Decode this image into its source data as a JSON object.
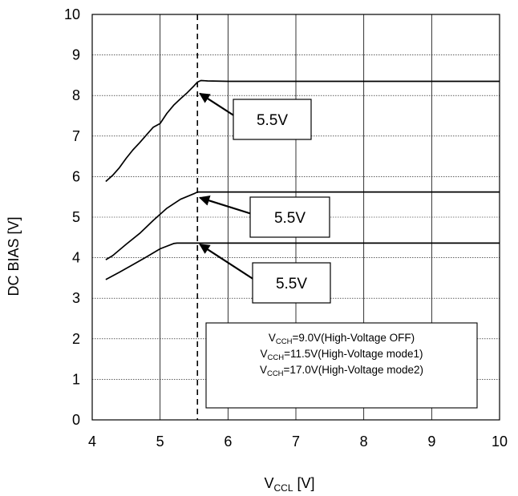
{
  "chart_data": {
    "type": "line",
    "title": "",
    "xlabel": {
      "main": "V",
      "sub": "CCL",
      "unit": " [V]"
    },
    "ylabel": "DC BIAS [V]",
    "xlim": [
      4,
      10
    ],
    "ylim": [
      0,
      10
    ],
    "xticks": [
      "4",
      "5",
      "6",
      "7",
      "8",
      "9",
      "10"
    ],
    "yticks": [
      "0",
      "1",
      "2",
      "3",
      "4",
      "5",
      "6",
      "7",
      "8",
      "9",
      "10"
    ],
    "grid": true,
    "reference_line": {
      "x": 5.55,
      "style": "dashed"
    },
    "series": [
      {
        "x": [
          4.2,
          4.3,
          4.4,
          4.5,
          4.6,
          4.7,
          4.8,
          4.9,
          5.0,
          5.1,
          5.2,
          5.3,
          5.4,
          5.5,
          5.55,
          5.6,
          5.7,
          6,
          7,
          8,
          9,
          10
        ],
        "values": [
          5.88,
          6.03,
          6.22,
          6.45,
          6.66,
          6.84,
          7.03,
          7.22,
          7.31,
          7.56,
          7.76,
          7.92,
          8.07,
          8.24,
          8.33,
          8.37,
          8.36,
          8.35,
          8.35,
          8.35,
          8.35,
          8.35
        ]
      },
      {
        "x": [
          4.2,
          4.3,
          4.5,
          4.7,
          4.9,
          5.1,
          5.3,
          5.5,
          5.55,
          5.6,
          6,
          7,
          8,
          9,
          10
        ],
        "values": [
          3.95,
          4.05,
          4.33,
          4.6,
          4.92,
          5.22,
          5.44,
          5.58,
          5.62,
          5.62,
          5.62,
          5.62,
          5.62,
          5.62,
          5.62
        ]
      },
      {
        "x": [
          4.2,
          4.4,
          4.6,
          4.8,
          5.0,
          5.2,
          5.25,
          5.5,
          6,
          7,
          8,
          9,
          10
        ],
        "values": [
          3.46,
          3.64,
          3.83,
          4.02,
          4.22,
          4.35,
          4.36,
          4.36,
          4.36,
          4.36,
          4.36,
          4.36,
          4.36
        ]
      }
    ],
    "annotations": [
      {
        "text": "5.5V",
        "target": [
          5.55,
          8.05
        ]
      },
      {
        "text": "5.5V",
        "target": [
          5.55,
          5.48
        ]
      },
      {
        "text": "5.5V",
        "target": [
          5.55,
          4.33
        ]
      }
    ],
    "legend": {
      "placement": "bottom-right",
      "entries": [
        {
          "main": "V",
          "sub": "CCH",
          "rest": "=9.0V(High-Voltage OFF)"
        },
        {
          "main": "V",
          "sub": "CCH",
          "rest": "=11.5V(High-Voltage mode1)"
        },
        {
          "main": "V",
          "sub": "CCH",
          "rest": "=17.0V(High-Voltage mode2)"
        }
      ]
    }
  }
}
